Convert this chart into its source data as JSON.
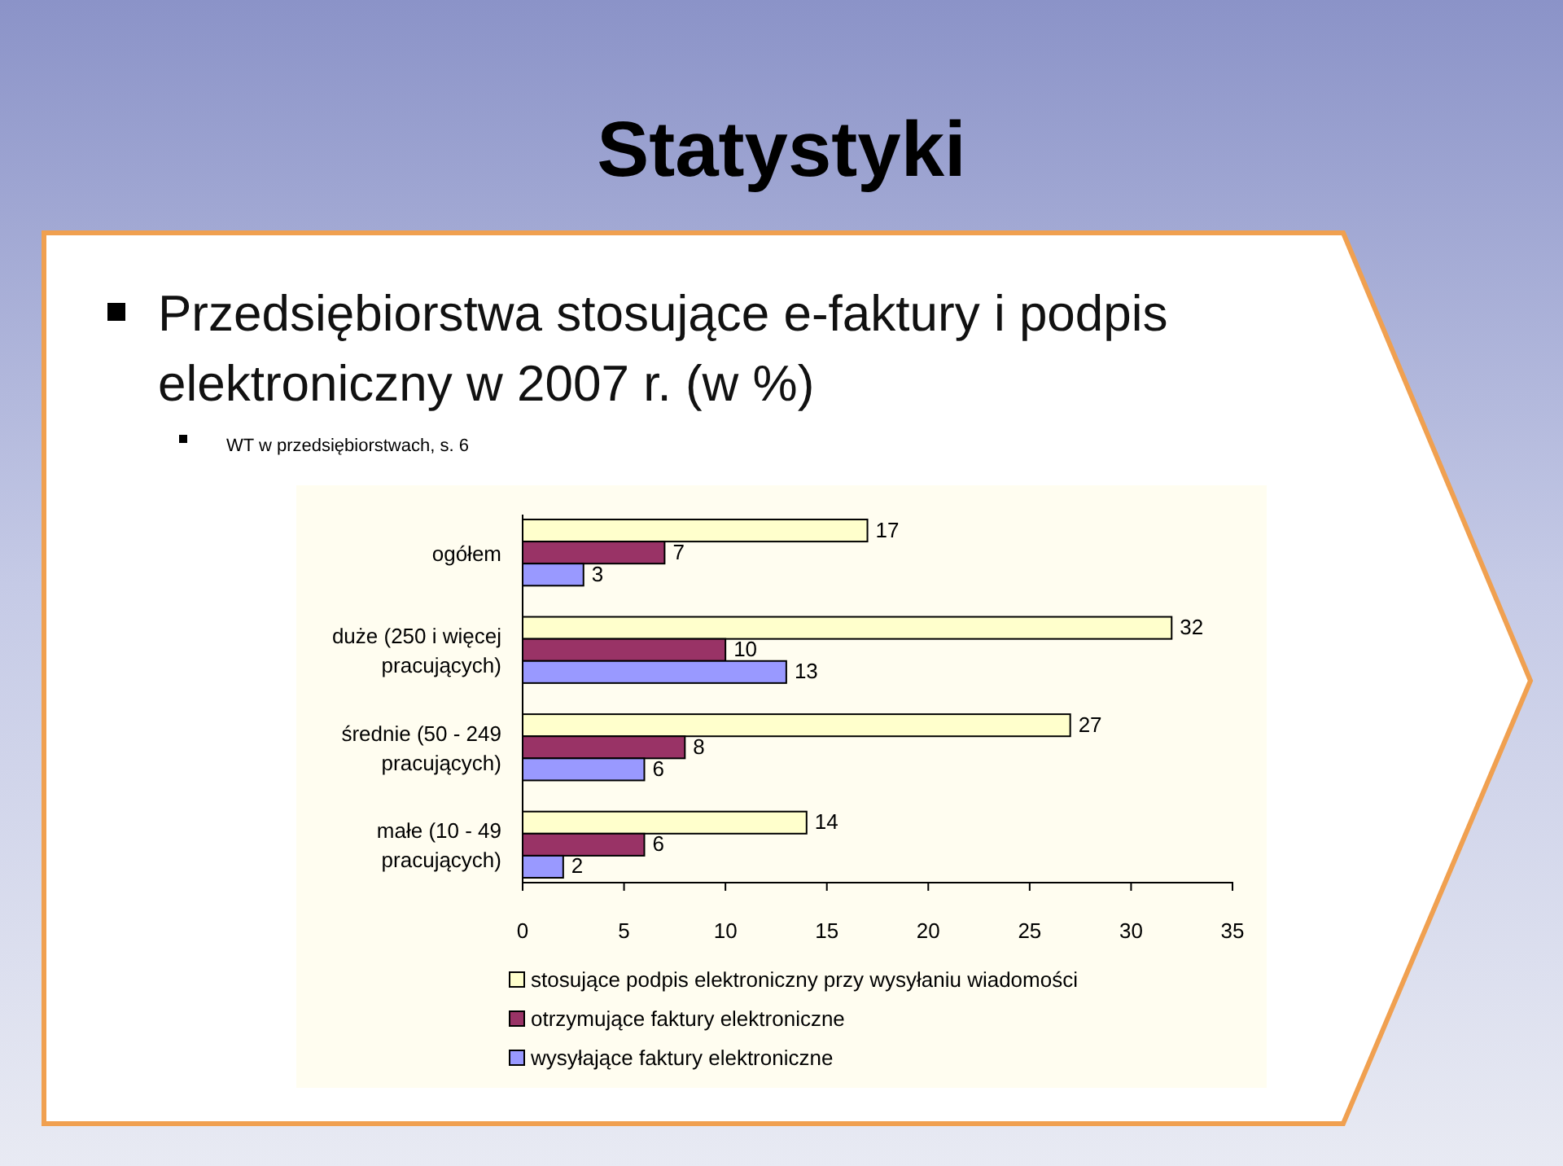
{
  "chart_data": {
    "type": "bar",
    "orientation": "horizontal",
    "title": "Statystyki",
    "subtitle": "Przedsiębiorstwa stosujące e-faktury i podpis elektroniczny w 2007 r. (w %)",
    "annotations": [
      "WT w przedsiębiorstwach, s. 6"
    ],
    "categories": [
      "ogółem",
      "duże (250 i więcej pracujących)",
      "średnie (50 - 249 pracujących)",
      "małe (10 - 49 pracujących)"
    ],
    "series": [
      {
        "name": "stosujące podpis elektroniczny przy wysyłaniu wiadomości",
        "color": "#ffffcc",
        "values": [
          17,
          32,
          27,
          14
        ]
      },
      {
        "name": "otrzymujące faktury elektroniczne",
        "color": "#993366",
        "values": [
          7,
          10,
          8,
          6
        ]
      },
      {
        "name": "wysyłające faktury elektroniczne",
        "color": "#9999ff",
        "values": [
          3,
          13,
          6,
          2
        ]
      }
    ],
    "xlim": [
      0,
      35
    ],
    "xticks": [
      0,
      5,
      10,
      15,
      20,
      25,
      30,
      35
    ],
    "data_labels": true,
    "legend": "bottom",
    "grid": false
  }
}
